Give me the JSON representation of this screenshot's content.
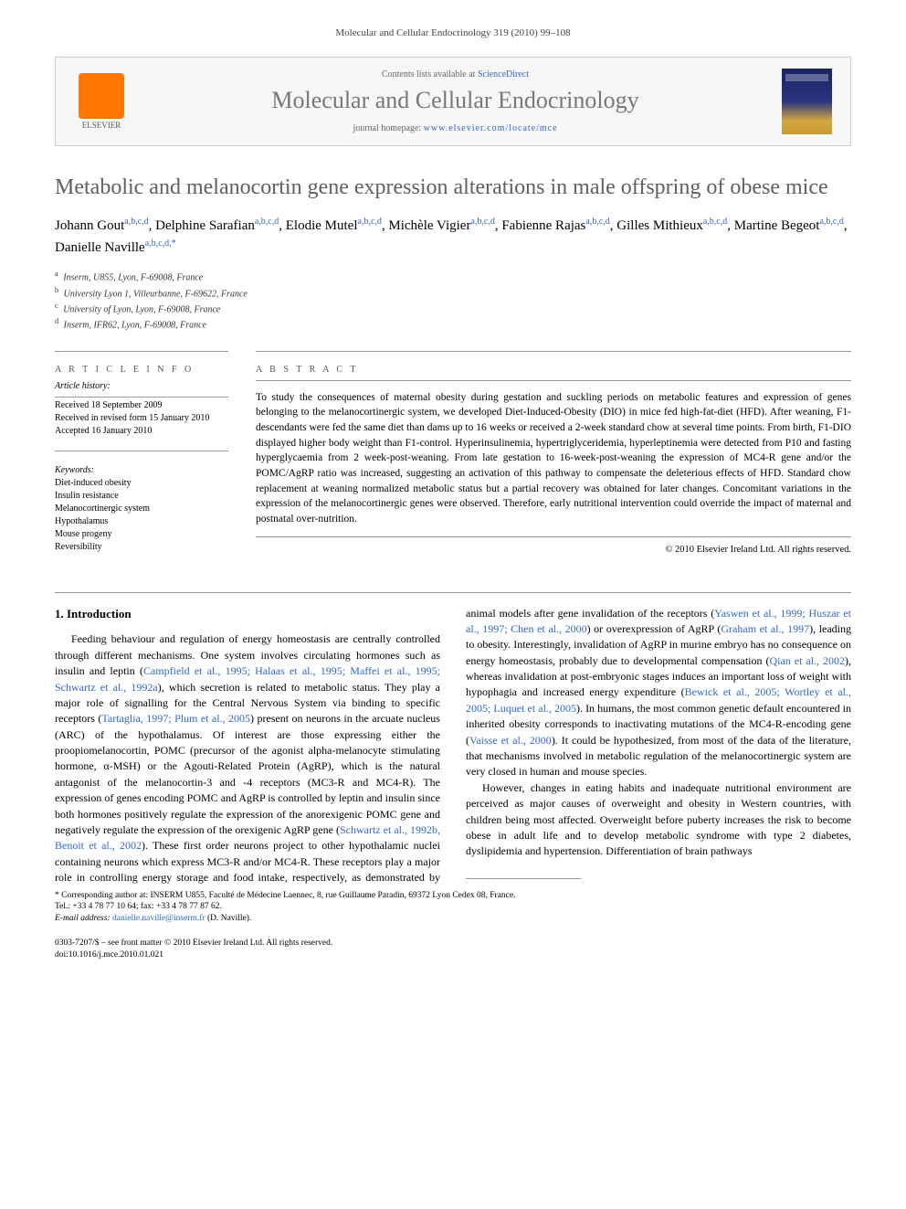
{
  "running_head": "Molecular and Cellular Endocrinology 319 (2010) 99–108",
  "header": {
    "contents_prefix": "Contents lists available at ",
    "contents_link": "ScienceDirect",
    "journal_name": "Molecular and Cellular Endocrinology",
    "homepage_prefix": "journal homepage: ",
    "homepage_link": "www.elsevier.com/locate/mce",
    "publisher_label": "ELSEVIER"
  },
  "title": "Metabolic and melanocortin gene expression alterations in male offspring of obese mice",
  "authors_html": "Johann Gout<sup>a,b,c,d</sup>, Delphine Sarafian<sup>a,b,c,d</sup>, Elodie Mutel<sup>a,b,c,d</sup>, Michèle Vigier<sup>a,b,c,d</sup>, Fabienne Rajas<sup>a,b,c,d</sup>, Gilles Mithieux<sup>a,b,c,d</sup>, Martine Begeot<sup>a,b,c,d</sup>, Danielle Naville<sup>a,b,c,d,*</sup>",
  "affiliations": [
    {
      "sup": "a",
      "text": "Inserm, U855, Lyon, F-69008, France"
    },
    {
      "sup": "b",
      "text": "University Lyon 1, Villeurbanne, F-69622, France"
    },
    {
      "sup": "c",
      "text": "University of Lyon, Lyon, F-69008, France"
    },
    {
      "sup": "d",
      "text": "Inserm, IFR62, Lyon, F-69008, France"
    }
  ],
  "article_info": {
    "label": "A R T I C L E   I N F O",
    "history_label": "Article history:",
    "history": [
      "Received 18 September 2009",
      "Received in revised form 15 January 2010",
      "Accepted 16 January 2010"
    ],
    "keywords_label": "Keywords:",
    "keywords": [
      "Diet-induced obesity",
      "Insulin resistance",
      "Melanocortinergic system",
      "Hypothalamus",
      "Mouse progeny",
      "Reversibility"
    ]
  },
  "abstract": {
    "label": "A B S T R A C T",
    "text": "To study the consequences of maternal obesity during gestation and suckling periods on metabolic features and expression of genes belonging to the melanocortinergic system, we developed Diet-Induced-Obesity (DIO) in mice fed high-fat-diet (HFD). After weaning, F1-descendants were fed the same diet than dams up to 16 weeks or received a 2-week standard chow at several time points. From birth, F1-DIO displayed higher body weight than F1-control. Hyperinsulinemia, hypertriglyceridemia, hyperleptinemia were detected from P10 and fasting hyperglycaemia from 2 week-post-weaning. From late gestation to 16-week-post-weaning the expression of MC4-R gene and/or the POMC/AgRP ratio was increased, suggesting an activation of this pathway to compensate the deleterious effects of HFD. Standard chow replacement at weaning normalized metabolic status but a partial recovery was obtained for later changes. Concomitant variations in the expression of the melanocortinergic genes were observed. Therefore, early nutritional intervention could override the impact of maternal and postnatal over-nutrition.",
    "copyright": "© 2010 Elsevier Ireland Ltd. All rights reserved."
  },
  "body": {
    "section_heading": "1.  Introduction",
    "para1_pre": "Feeding behaviour and regulation of energy homeostasis are centrally controlled through different mechanisms. One system involves circulating hormones such as insulin and leptin (",
    "para1_link1": "Campfield et al., 1995; Halaas et al., 1995; Maffei et al., 1995; Schwartz et al., 1992a",
    "para1_mid": "), which secretion is related to metabolic status. They play a major role of signalling for the Central Nervous System via binding to specific receptors (",
    "para1_link2": "Tartaglia, 1997; Plum et al., 2005",
    "para1_post": ") present on neurons in the arcuate nucleus (ARC) of the hypothalamus. Of interest are those expressing either the proopiomelanocortin, POMC (precursor of the agonist alpha-melanocyte stimulating hormone, α-MSH) or the Agouti-Related Protein (AgRP), which is the natural antagonist of the melanocortin-3 and -4 receptors (MC3-R and MC4-R). The expression of genes encoding POMC and AgRP is controlled by leptin and insulin since both hormones positively regulate the expression of the anorexigenic POMC gene and negatively regulate the expression of the orexigenic AgRP gene (",
    "para1_link3": "Schwartz et al., 1992b, Benoit et al., 2002",
    "para1_tail_a": "). These first order neurons project to other hypothalamic nuclei containing neurons which express MC3-R and/or MC4-R. These receptors play a major role in controlling energy storage and food intake, respectively, as demonstrated by animal models after gene invalidation of the receptors (",
    "para1_link4": "Yaswen et al., 1999; Huszar et al., 1997; Chen et al., 2000",
    "para1_tail_b": ") or overexpression of AgRP (",
    "para1_link5": "Graham et al., 1997",
    "para1_tail_c": "), leading to obesity. Interestingly, invalidation of AgRP in murine embryo has no consequence on energy homeostasis, probably due to developmental compensation (",
    "para1_link6": "Qian et al., 2002",
    "para1_tail_d": "), whereas invalidation at post-embryonic stages induces an important loss of weight with hypophagia and increased energy expenditure (",
    "para1_link7": "Bewick et al., 2005; Wortley et al., 2005; Luquet et al., 2005",
    "para1_tail_e": "). In humans, the most common genetic default encountered in inherited obesity corresponds to inactivating mutations of the MC4-R-encoding gene (",
    "para1_link8": "Vaisse et al., 2000",
    "para1_tail_f": "). It could be hypothesized, from most of the data of the literature, that mechanisms involved in metabolic regulation of the melanocortinergic system are very closed in human and mouse species.",
    "para2": "However, changes in eating habits and inadequate nutritional environment are perceived as major causes of overweight and obesity in Western countries, with children being most affected. Overweight before puberty increases the risk to become obese in adult life and to develop metabolic syndrome with type 2 diabetes, dyslipidemia and hypertension. Differentiation of brain pathways"
  },
  "footnotes": {
    "corresponding": "* Corresponding author at: INSERM U855, Faculté de Médecine Laennec, 8, rue Guillaume Paradin, 69372 Lyon Cedex 08, France.",
    "tel": "Tel.: +33 4 78 77 10 64; fax: +33 4 78 77 87 62.",
    "email_label": "E-mail address: ",
    "email": "danielle.naville@inserm.fr",
    "email_suffix": " (D. Naville).",
    "issn_line": "0303-7207/$ – see front matter © 2010 Elsevier Ireland Ltd. All rights reserved.",
    "doi": "doi:10.1016/j.mce.2010.01.021"
  },
  "colors": {
    "link": "#3366cc",
    "title_gray": "#606060",
    "journal_gray": "#777777",
    "border_gray": "#cccccc",
    "header_bg": "#f7f7f7"
  }
}
